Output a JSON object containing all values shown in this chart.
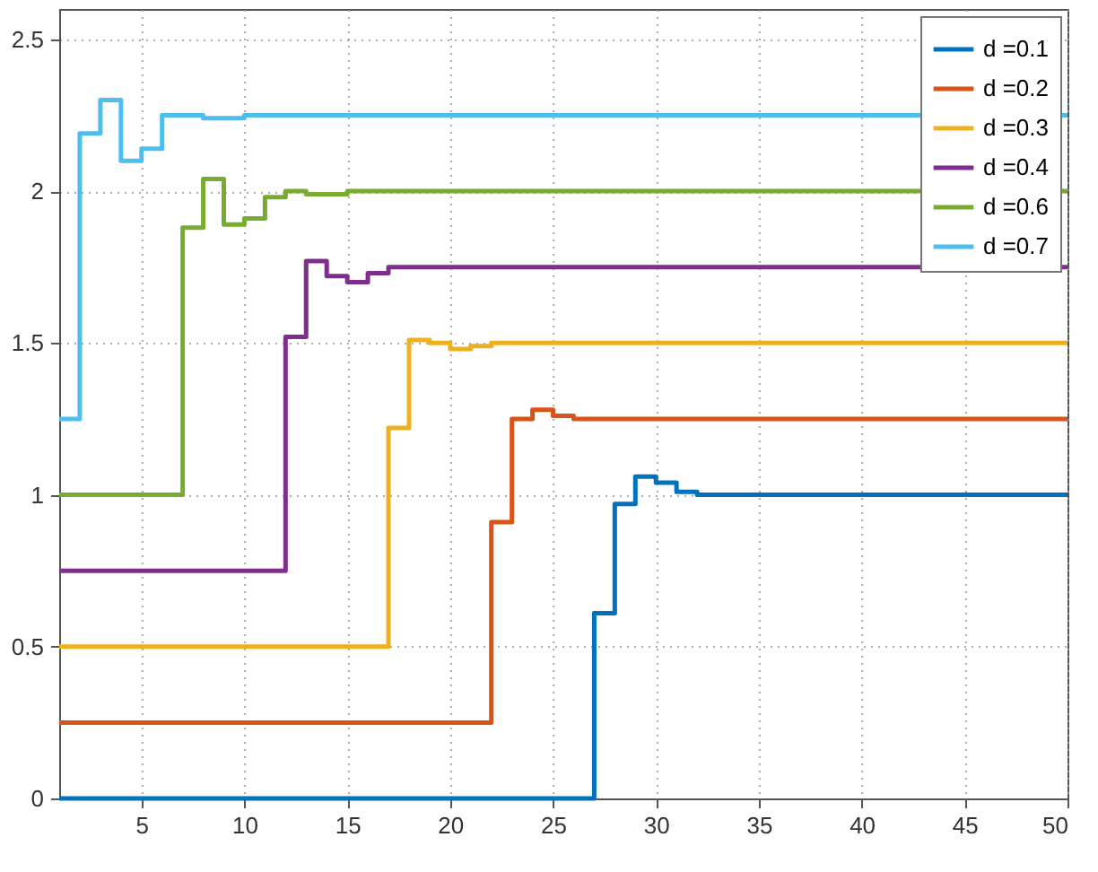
{
  "chart_data": {
    "type": "step",
    "xlim": [
      1,
      50
    ],
    "xticks": [
      5,
      10,
      15,
      20,
      25,
      30,
      35,
      40,
      45,
      50
    ],
    "ylim": [
      0,
      2.6
    ],
    "yticks": [
      0,
      0.5,
      1,
      1.5,
      2,
      2.5
    ],
    "grid": true,
    "legend": "top right",
    "line_style": "solid",
    "marker": "none",
    "series": [
      {
        "name": "d =0.1",
        "color": "#0072bd",
        "x": [
          1,
          27,
          28,
          29,
          30,
          31,
          32,
          50
        ],
        "values": [
          0,
          0.61,
          0.97,
          1.06,
          1.04,
          1.01,
          1.0,
          1.0
        ]
      },
      {
        "name": "d =0.2",
        "color": "#d95319",
        "x": [
          1,
          22,
          23,
          24,
          25,
          26,
          50
        ],
        "values": [
          0.25,
          0.91,
          1.25,
          1.28,
          1.26,
          1.25,
          1.25
        ]
      },
      {
        "name": "d =0.3",
        "color": "#edb120",
        "x": [
          1,
          17,
          18,
          19,
          20,
          21,
          22,
          50
        ],
        "values": [
          0.5,
          1.22,
          1.51,
          1.5,
          1.48,
          1.49,
          1.5,
          1.5
        ]
      },
      {
        "name": "d =0.4",
        "color": "#7e2f8e",
        "x": [
          1,
          12,
          13,
          14,
          15,
          16,
          17,
          50
        ],
        "values": [
          0.75,
          1.52,
          1.77,
          1.72,
          1.7,
          1.73,
          1.75,
          1.75
        ]
      },
      {
        "name": "d =0.6",
        "color": "#77ac30",
        "x": [
          1,
          7,
          8,
          9,
          10,
          11,
          12,
          13,
          15,
          50
        ],
        "values": [
          1.0,
          1.88,
          2.04,
          1.89,
          1.91,
          1.98,
          2.0,
          1.99,
          2.0,
          2.0
        ]
      },
      {
        "name": "d =0.7",
        "color": "#4dbeee",
        "x": [
          1,
          2,
          3,
          4,
          5,
          6,
          8,
          10,
          50
        ],
        "values": [
          1.25,
          2.19,
          2.3,
          2.1,
          2.14,
          2.25,
          2.24,
          2.25,
          2.25
        ]
      }
    ]
  }
}
